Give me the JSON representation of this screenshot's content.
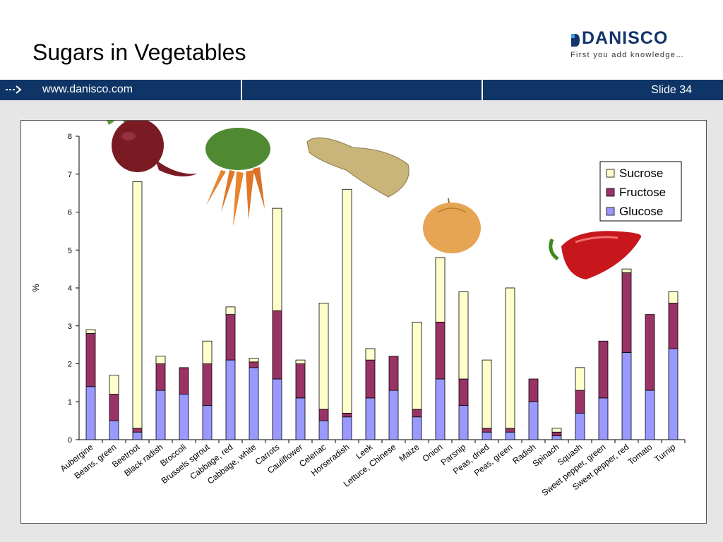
{
  "slide": {
    "title": "Sugars in Vegetables",
    "logo_name": "DANISCO",
    "logo_tagline": "First you add knowledge…",
    "url": "www.danisco.com",
    "slide_label": "Slide 34"
  },
  "colors": {
    "band": "#0f3567",
    "sucrose": "#ffffcc",
    "fructose": "#993366",
    "glucose": "#9999ff"
  },
  "chart_data": {
    "type": "bar",
    "stacked": true,
    "ylabel": "%",
    "ylim": [
      0,
      8
    ],
    "yticks": [
      "0",
      "1",
      "2",
      "3",
      "4",
      "5",
      "6",
      "7",
      "8"
    ],
    "legend_position": "top-right",
    "categories": [
      "Aubergine",
      "Beans, green",
      "Beetroot",
      "Black radish",
      "Broccoli",
      "Brussels sprout",
      "Cabbage, red",
      "Cabbage, white",
      "Carrots",
      "Cauliflower",
      "Celeriac",
      "Horseradish",
      "Leek",
      "Lettuce, Chinese",
      "Maize",
      "Onion",
      "Parsnip",
      "Peas, dried",
      "Peas, green",
      "Radish",
      "Spinach",
      "Squash",
      "Sweet pepper, green",
      "Sweet pepper, red",
      "Tomato",
      "Turnip"
    ],
    "series": [
      {
        "name": "Glucose",
        "values": [
          1.4,
          0.5,
          0.2,
          1.3,
          1.2,
          0.9,
          2.1,
          1.9,
          1.6,
          1.1,
          0.5,
          0.6,
          1.1,
          1.3,
          0.6,
          1.6,
          0.9,
          0.2,
          0.2,
          1.0,
          0.1,
          0.7,
          1.1,
          2.3,
          1.3,
          2.4
        ]
      },
      {
        "name": "Fructose",
        "values": [
          1.4,
          0.7,
          0.1,
          0.7,
          0.7,
          1.1,
          1.2,
          0.15,
          1.8,
          0.9,
          0.3,
          0.1,
          1.0,
          0.9,
          0.2,
          1.5,
          0.7,
          0.1,
          0.1,
          0.6,
          0.1,
          0.6,
          1.5,
          2.1,
          2.0,
          1.2
        ]
      },
      {
        "name": "Sucrose",
        "values": [
          0.1,
          0.5,
          6.5,
          0.2,
          0.0,
          0.6,
          0.2,
          0.1,
          2.7,
          0.1,
          2.8,
          5.9,
          0.3,
          0.0,
          2.3,
          1.7,
          2.3,
          1.8,
          3.7,
          0.0,
          0.1,
          0.6,
          0.0,
          0.1,
          0.0,
          0.3
        ]
      }
    ],
    "legend_order": [
      "Sucrose",
      "Fructose",
      "Glucose"
    ]
  }
}
